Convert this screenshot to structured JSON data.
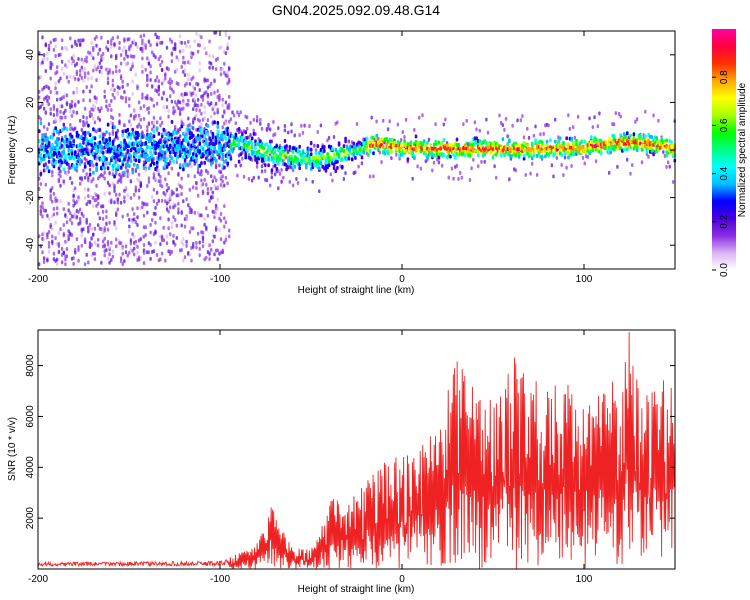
{
  "title": "GN04.2025.092.09.48.G14",
  "chart_data": [
    {
      "type": "heatmap",
      "xlabel": "Height of straight line (km)",
      "ylabel": "Frequency (Hz)",
      "xlim": [
        -200,
        150
      ],
      "ylim": [
        -50,
        50
      ],
      "xticks": [
        -200,
        -100,
        0,
        100
      ],
      "yticks": [
        -40,
        -20,
        0,
        20,
        40
      ],
      "colorbar": {
        "label": "Normalized spectral amplitude",
        "range": [
          0,
          1
        ],
        "ticks": [
          "0.0",
          "0.2",
          "0.4",
          "0.6",
          "0.8"
        ],
        "colors": [
          "#ffffff",
          "#d9b3f2",
          "#8a2be2",
          "#4b00e0",
          "#0000ff",
          "#00bfff",
          "#00ffff",
          "#00ff80",
          "#00ff00",
          "#aaff00",
          "#ffff00",
          "#ffa500",
          "#ff3000",
          "#ff0040",
          "#ff00a0"
        ]
      },
      "ridge_frequency": {
        "x": [
          -200,
          -150,
          -100,
          -90,
          -80,
          -70,
          -60,
          -50,
          -40,
          -30,
          -20,
          -15,
          -10,
          0,
          20,
          50,
          80,
          100,
          115,
          130,
          140,
          150
        ],
        "y": [
          0,
          0,
          2,
          3,
          0,
          -2,
          -3,
          -4,
          -3,
          -1,
          1,
          3,
          2,
          1,
          0.5,
          0.5,
          0.5,
          1,
          3,
          3,
          2,
          0
        ]
      }
    },
    {
      "type": "line",
      "xlabel": "Height of straight line (km)",
      "ylabel": "SNR (10 * v/v)",
      "xlim": [
        -200,
        150
      ],
      "ylim": [
        0,
        9400
      ],
      "xticks": [
        -200,
        -100,
        0,
        100
      ],
      "yticks": [
        2000,
        4000,
        6000,
        8000
      ],
      "color": "#ee2222",
      "envelope": {
        "x": [
          -200,
          -110,
          -100,
          -90,
          -80,
          -75,
          -72,
          -68,
          -60,
          -55,
          -50,
          -45,
          -40,
          -30,
          -20,
          -10,
          0,
          10,
          20,
          30,
          40,
          50,
          60,
          70,
          80,
          90,
          100,
          110,
          120,
          125,
          130,
          140,
          150
        ],
        "y": [
          250,
          300,
          350,
          600,
          1000,
          1800,
          3000,
          1800,
          900,
          800,
          800,
          1400,
          2800,
          2600,
          3400,
          4200,
          4500,
          4800,
          6000,
          8200,
          7200,
          6600,
          9400,
          7200,
          7800,
          7400,
          7000,
          7600,
          7600,
          9400,
          7000,
          7500,
          7800
        ]
      }
    }
  ]
}
